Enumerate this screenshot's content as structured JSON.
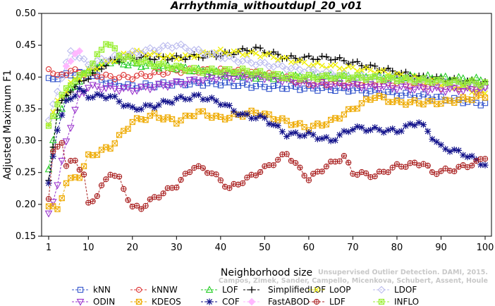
{
  "chart_data": {
    "type": "line",
    "title": "Arrhythmia_withoutdupl_20_v01",
    "xlabel": "Neighborhood size",
    "ylabel": "Adjusted Maximum F1",
    "xlim": [
      1,
      100
    ],
    "ylim": [
      0.15,
      0.5
    ],
    "xticks": [
      1,
      10,
      20,
      30,
      40,
      50,
      60,
      70,
      80,
      90,
      100
    ],
    "yticks": [
      0.15,
      0.2,
      0.25,
      0.3,
      0.35,
      0.4,
      0.45,
      0.5
    ],
    "grid": false,
    "legend_position": "bottom",
    "watermark": [
      "Campos, Zimek, Sander, Campello, Micenkova, Schubert, Assent, Houle",
      "Unsupervised Outlier Detection. DAMI, 2015."
    ],
    "series": [
      {
        "name": "kNN",
        "color": "#3355cc",
        "marker": "square",
        "anchors": [
          [
            1,
            0.395
          ],
          [
            3,
            0.4
          ],
          [
            6,
            0.405
          ],
          [
            10,
            0.405
          ],
          [
            15,
            0.39
          ],
          [
            20,
            0.385
          ],
          [
            30,
            0.39
          ],
          [
            40,
            0.39
          ],
          [
            50,
            0.385
          ],
          [
            70,
            0.38
          ],
          [
            85,
            0.37
          ],
          [
            92,
            0.365
          ],
          [
            100,
            0.358
          ]
        ]
      },
      {
        "name": "kNNW",
        "color": "#dd3333",
        "marker": "circle",
        "anchors": [
          [
            1,
            0.415
          ],
          [
            3,
            0.4
          ],
          [
            6,
            0.41
          ],
          [
            10,
            0.405
          ],
          [
            15,
            0.4
          ],
          [
            20,
            0.4
          ],
          [
            30,
            0.41
          ],
          [
            40,
            0.41
          ],
          [
            50,
            0.405
          ],
          [
            60,
            0.39
          ],
          [
            80,
            0.39
          ],
          [
            90,
            0.385
          ],
          [
            100,
            0.382
          ]
        ]
      },
      {
        "name": "LOF",
        "color": "#22cc22",
        "marker": "triangle-up",
        "anchors": [
          [
            1,
            0.255
          ],
          [
            3,
            0.34
          ],
          [
            6,
            0.38
          ],
          [
            10,
            0.41
          ],
          [
            15,
            0.425
          ],
          [
            20,
            0.42
          ],
          [
            30,
            0.415
          ],
          [
            40,
            0.405
          ],
          [
            50,
            0.4
          ],
          [
            70,
            0.4
          ],
          [
            85,
            0.4
          ],
          [
            100,
            0.395
          ]
        ]
      },
      {
        "name": "SimplifiedLOF",
        "color": "#000000",
        "marker": "plus",
        "anchors": [
          [
            1,
            0.235
          ],
          [
            3,
            0.35
          ],
          [
            6,
            0.38
          ],
          [
            8,
            0.39
          ],
          [
            10,
            0.4
          ],
          [
            15,
            0.425
          ],
          [
            20,
            0.43
          ],
          [
            30,
            0.43
          ],
          [
            40,
            0.435
          ],
          [
            48,
            0.445
          ],
          [
            55,
            0.43
          ],
          [
            65,
            0.43
          ],
          [
            75,
            0.415
          ],
          [
            85,
            0.4
          ],
          [
            100,
            0.39
          ]
        ]
      },
      {
        "name": "LoOP",
        "color": "#eeee00",
        "marker": "x",
        "anchors": [
          [
            1,
            0.33
          ],
          [
            3,
            0.36
          ],
          [
            6,
            0.39
          ],
          [
            10,
            0.41
          ],
          [
            15,
            0.425
          ],
          [
            20,
            0.44
          ],
          [
            30,
            0.43
          ],
          [
            40,
            0.44
          ],
          [
            50,
            0.435
          ],
          [
            60,
            0.42
          ],
          [
            75,
            0.41
          ],
          [
            90,
            0.39
          ],
          [
            100,
            0.375
          ]
        ]
      },
      {
        "name": "LDOF",
        "color": "#bbbbee",
        "marker": "diamond",
        "anchors": [
          [
            1,
            0.33
          ],
          [
            3,
            0.38
          ],
          [
            6,
            0.44
          ],
          [
            10,
            0.42
          ],
          [
            15,
            0.43
          ],
          [
            22,
            0.44
          ],
          [
            30,
            0.45
          ],
          [
            35,
            0.44
          ],
          [
            45,
            0.425
          ],
          [
            55,
            0.415
          ],
          [
            70,
            0.4
          ],
          [
            85,
            0.395
          ],
          [
            100,
            0.385
          ]
        ]
      },
      {
        "name": "ODIN",
        "color": "#9933cc",
        "marker": "triangle-down",
        "anchors": [
          [
            1,
            0.185
          ],
          [
            3,
            0.23
          ],
          [
            5,
            0.3
          ],
          [
            8,
            0.37
          ],
          [
            10,
            0.385
          ],
          [
            20,
            0.38
          ],
          [
            30,
            0.39
          ],
          [
            40,
            0.4
          ],
          [
            50,
            0.4
          ],
          [
            60,
            0.39
          ],
          [
            75,
            0.385
          ],
          [
            90,
            0.38
          ],
          [
            100,
            0.38
          ]
        ]
      },
      {
        "name": "KDEOS",
        "color": "#eeaa00",
        "marker": "square-x",
        "anchors": [
          [
            1,
            0.2
          ],
          [
            3,
            0.19
          ],
          [
            5,
            0.235
          ],
          [
            8,
            0.245
          ],
          [
            10,
            0.275
          ],
          [
            15,
            0.29
          ],
          [
            20,
            0.33
          ],
          [
            25,
            0.34
          ],
          [
            30,
            0.33
          ],
          [
            35,
            0.345
          ],
          [
            40,
            0.335
          ],
          [
            48,
            0.345
          ],
          [
            55,
            0.33
          ],
          [
            60,
            0.32
          ],
          [
            65,
            0.33
          ],
          [
            70,
            0.35
          ],
          [
            75,
            0.37
          ],
          [
            80,
            0.36
          ],
          [
            90,
            0.36
          ],
          [
            100,
            0.37
          ]
        ]
      },
      {
        "name": "COF",
        "color": "#11118a",
        "marker": "star",
        "anchors": [
          [
            1,
            0.23
          ],
          [
            3,
            0.32
          ],
          [
            5,
            0.36
          ],
          [
            8,
            0.38
          ],
          [
            10,
            0.37
          ],
          [
            15,
            0.37
          ],
          [
            20,
            0.35
          ],
          [
            25,
            0.355
          ],
          [
            30,
            0.365
          ],
          [
            35,
            0.37
          ],
          [
            40,
            0.36
          ],
          [
            45,
            0.34
          ],
          [
            50,
            0.335
          ],
          [
            55,
            0.31
          ],
          [
            60,
            0.31
          ],
          [
            65,
            0.3
          ],
          [
            70,
            0.32
          ],
          [
            80,
            0.315
          ],
          [
            85,
            0.33
          ],
          [
            90,
            0.29
          ],
          [
            95,
            0.28
          ],
          [
            100,
            0.262
          ]
        ]
      },
      {
        "name": "FastABOD",
        "color": "#ffb8ff",
        "marker": "diamond-filled",
        "anchors": [
          [
            5,
            0.42
          ],
          [
            8,
            0.44
          ]
        ]
      },
      {
        "name": "LDF",
        "color": "#aa2222",
        "marker": "circle-plus",
        "anchors": [
          [
            1,
            0.21
          ],
          [
            2,
            0.28
          ],
          [
            4,
            0.3
          ],
          [
            5,
            0.26
          ],
          [
            7,
            0.27
          ],
          [
            9,
            0.245
          ],
          [
            10,
            0.2
          ],
          [
            12,
            0.215
          ],
          [
            15,
            0.25
          ],
          [
            17,
            0.24
          ],
          [
            20,
            0.195
          ],
          [
            22,
            0.195
          ],
          [
            25,
            0.21
          ],
          [
            30,
            0.23
          ],
          [
            34,
            0.26
          ],
          [
            38,
            0.25
          ],
          [
            42,
            0.225
          ],
          [
            46,
            0.24
          ],
          [
            52,
            0.265
          ],
          [
            55,
            0.28
          ],
          [
            58,
            0.255
          ],
          [
            60,
            0.24
          ],
          [
            64,
            0.26
          ],
          [
            68,
            0.275
          ],
          [
            70,
            0.25
          ],
          [
            75,
            0.245
          ],
          [
            80,
            0.26
          ],
          [
            86,
            0.265
          ],
          [
            88,
            0.25
          ],
          [
            93,
            0.255
          ],
          [
            98,
            0.265
          ],
          [
            100,
            0.275
          ]
        ]
      },
      {
        "name": "INFLO",
        "color": "#99ee33",
        "marker": "square-star",
        "anchors": [
          [
            1,
            0.32
          ],
          [
            3,
            0.36
          ],
          [
            6,
            0.39
          ],
          [
            10,
            0.41
          ],
          [
            14,
            0.455
          ],
          [
            18,
            0.43
          ],
          [
            25,
            0.42
          ],
          [
            35,
            0.41
          ],
          [
            45,
            0.41
          ],
          [
            55,
            0.4
          ],
          [
            70,
            0.4
          ],
          [
            85,
            0.395
          ],
          [
            100,
            0.39
          ]
        ]
      }
    ]
  }
}
